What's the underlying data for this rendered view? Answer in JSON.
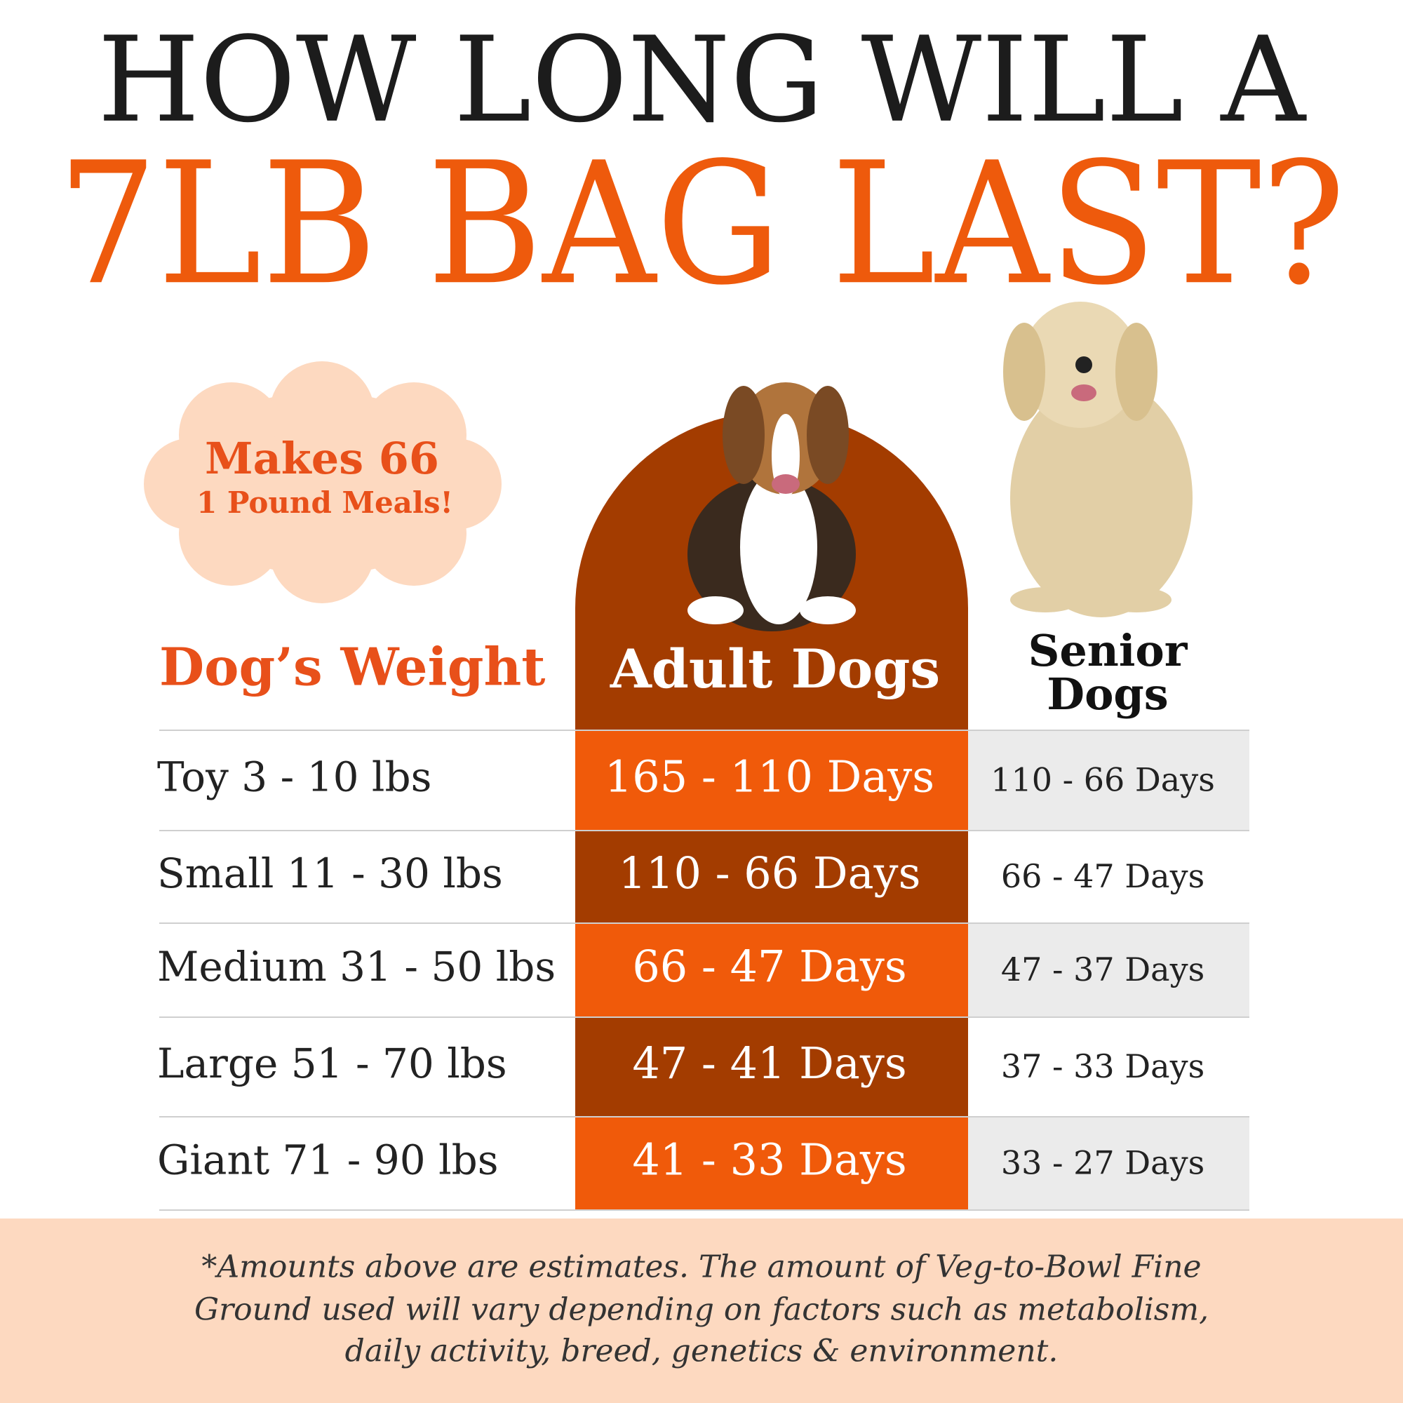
{
  "header": {
    "line1": "HOW LONG WILL A",
    "line2": "7LB BAG LAST?"
  },
  "badge": {
    "line1": "Makes 66",
    "line2": "1 Pound Meals!"
  },
  "table": {
    "headers": [
      "Dog’s Weight",
      "Adult Dogs",
      [
        "Senior",
        "Dogs"
      ]
    ],
    "rows": [
      [
        "Toy 3 - 10 lbs",
        "165 - 110 Days",
        "110 - 66 Days"
      ],
      [
        "Small 11 - 30 lbs",
        "110 - 66 Days",
        "66 - 47 Days"
      ],
      [
        "Medium 31 - 50 lbs",
        "66 - 47 Days",
        "47 - 37 Days"
      ],
      [
        "Large 51 - 70 lbs",
        "47 - 41 Days",
        "37 - 33 Days"
      ],
      [
        "Giant 71 - 90 lbs",
        "41 - 33 Days",
        "33 - 27 Days"
      ]
    ]
  },
  "footnote": {
    "lines": [
      "*Amounts above are estimates. The amount of Veg-to-Bowl  Fine",
      "Ground used will vary depending on factors such as metabolism,",
      "daily activity, breed, genetics & environment."
    ]
  }
}
